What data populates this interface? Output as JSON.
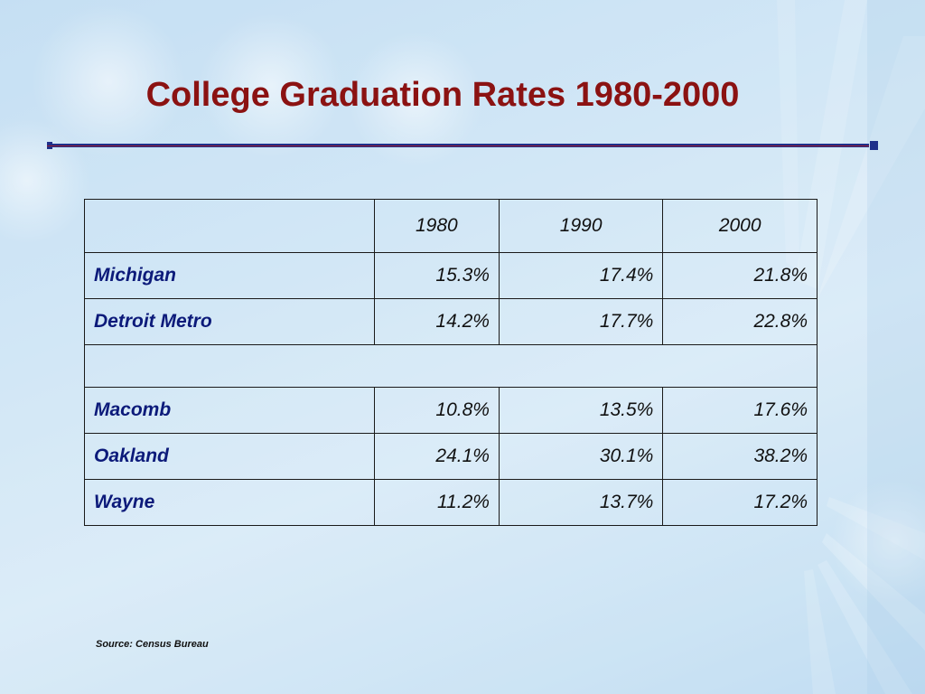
{
  "slide": {
    "title": "College Graduation Rates 1980-2000",
    "source": "Source:  Census Bureau"
  },
  "table": {
    "headers": [
      "",
      "1980",
      "1990",
      "2000"
    ],
    "rows": [
      {
        "name": "Michigan",
        "values": [
          "15.3%",
          "17.4%",
          "21.8%"
        ]
      },
      {
        "name": "Detroit Metro",
        "values": [
          "14.2%",
          "17.7%",
          "22.8%"
        ]
      },
      {
        "name": "Macomb",
        "values": [
          "10.8%",
          "13.5%",
          "17.6%"
        ]
      },
      {
        "name": "Oakland",
        "values": [
          "24.1%",
          "30.1%",
          "38.2%"
        ]
      },
      {
        "name": "Wayne",
        "values": [
          "11.2%",
          "13.7%",
          "17.2%"
        ]
      }
    ]
  },
  "colors": {
    "title": "#8b1212",
    "rule": "#1f2f8a",
    "row_label": "#0c1a7a"
  }
}
